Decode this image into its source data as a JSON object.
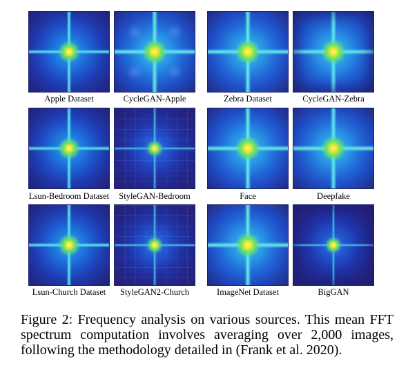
{
  "figure": {
    "panels": [
      {
        "label": "Apple Dataset"
      },
      {
        "label": "CycleGAN-Apple"
      },
      {
        "label": "Zebra Dataset"
      },
      {
        "label": "CycleGAN-Zebra"
      },
      {
        "label": "Lsun-Bedroom Dataset"
      },
      {
        "label": "StyleGAN-Bedroom"
      },
      {
        "label": "Face"
      },
      {
        "label": "Deepfake"
      },
      {
        "label": "Lsun-Church Dataset"
      },
      {
        "label": "StyleGAN2-Church"
      },
      {
        "label": "ImageNet Dataset"
      },
      {
        "label": "BigGAN"
      }
    ],
    "caption": "Figure 2: Frequency analysis on various sources. This mean FFT spectrum computation involves averaging over 2,000 images, following the methodology detailed in (Frank et al. 2020).",
    "colors": {
      "spectrum_low": "#1e2478",
      "spectrum_mid": "#1f7fe0",
      "spectrum_peak": "#f6ea3a"
    }
  }
}
